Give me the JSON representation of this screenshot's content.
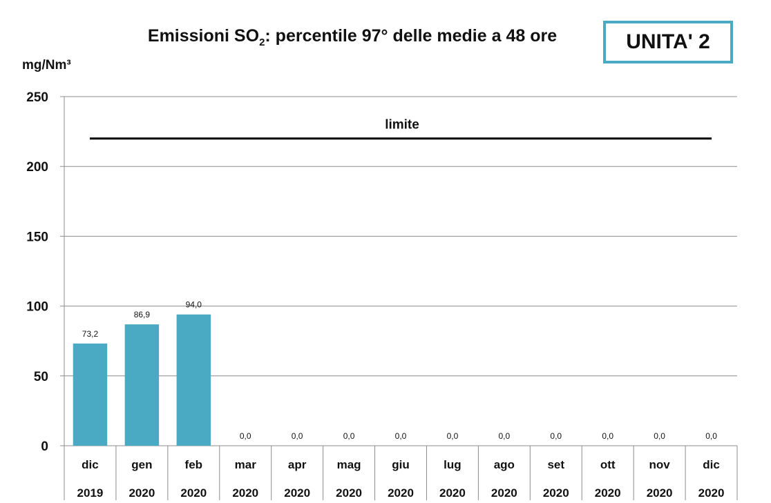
{
  "chart_data": {
    "type": "bar",
    "title_prefix": "Emissioni SO",
    "title_subscript": "2",
    "title_suffix": ": percentile 97° delle medie a 48 ore",
    "ylabel": "mg/Nm³",
    "ylim": [
      0,
      250
    ],
    "yticks": [
      "0",
      "50",
      "100",
      "150",
      "200",
      "250"
    ],
    "grid": true,
    "categories": [
      {
        "month": "dic",
        "year": "2019"
      },
      {
        "month": "gen",
        "year": "2020"
      },
      {
        "month": "feb",
        "year": "2020"
      },
      {
        "month": "mar",
        "year": "2020"
      },
      {
        "month": "apr",
        "year": "2020"
      },
      {
        "month": "mag",
        "year": "2020"
      },
      {
        "month": "giu",
        "year": "2020"
      },
      {
        "month": "lug",
        "year": "2020"
      },
      {
        "month": "ago",
        "year": "2020"
      },
      {
        "month": "set",
        "year": "2020"
      },
      {
        "month": "ott",
        "year": "2020"
      },
      {
        "month": "nov",
        "year": "2020"
      },
      {
        "month": "dic",
        "year": "2020"
      }
    ],
    "values": [
      73.2,
      86.9,
      94.0,
      0,
      0,
      0,
      0,
      0,
      0,
      0,
      0,
      0,
      0
    ],
    "value_labels": [
      "73,2",
      "86,9",
      "94,0",
      "0,0",
      "0,0",
      "0,0",
      "0,0",
      "0,0",
      "0,0",
      "0,0",
      "0,0",
      "0,0",
      "0,0"
    ],
    "limit": {
      "label": "limite",
      "value": 220
    },
    "bar_color": "#4aaac4"
  },
  "badge": {
    "label": "UNITA' 2",
    "border_color": "#4aaac4"
  }
}
